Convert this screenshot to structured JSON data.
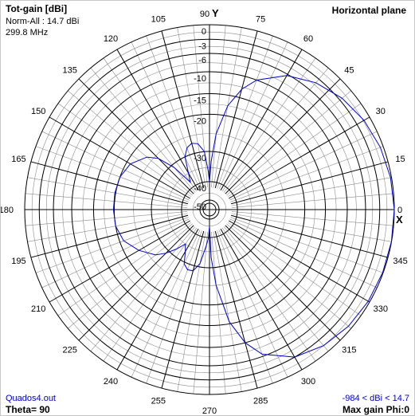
{
  "header": {
    "title": "Tot-gain [dBi]",
    "norm": "Norm-All : 14.7 dBi",
    "frequency": "299.8 MHz",
    "plane": "Horizontal plane"
  },
  "axis_marks": {
    "y_label": "Y",
    "x_label": "X"
  },
  "footer": {
    "file": "Quados4.out",
    "theta": "Theta= 90",
    "range": "-984 < dBi < 14.7",
    "max_gain": "Max gain Phi:0"
  },
  "colors": {
    "pattern": "#0000c8",
    "grid_major": "#000000",
    "grid_minor": "#8c8c8c"
  },
  "chart_data": {
    "type": "polar",
    "title": "Tot-gain [dBi]",
    "plane": "Horizontal plane",
    "angle_unit": "degrees",
    "angle_ticks": [
      0,
      15,
      30,
      45,
      60,
      75,
      90,
      105,
      120,
      135,
      150,
      165,
      180,
      195,
      210,
      225,
      240,
      255,
      270,
      285,
      300,
      315,
      330,
      345
    ],
    "radial_ticks": [
      0,
      -3,
      -6,
      -10,
      -15,
      -20,
      -30,
      -40,
      -50
    ],
    "radial_range_dB": [
      -50,
      0
    ],
    "series": [
      {
        "angles": [
          0,
          10,
          20,
          30,
          40,
          50,
          60,
          70,
          75,
          80,
          85,
          88,
          90,
          92,
          95,
          100,
          105,
          110,
          115,
          120,
          125,
          130,
          135,
          140,
          150,
          160,
          170,
          180,
          190,
          200,
          210,
          220,
          225,
          230,
          235,
          240,
          245,
          250,
          255,
          260,
          265,
          268,
          270,
          272,
          275,
          280,
          285,
          290,
          300,
          310,
          320,
          330,
          340,
          350
        ],
        "values_dB": [
          0,
          -0.2,
          -0.6,
          -1.3,
          -2.4,
          -4.0,
          -6.3,
          -10.0,
          -13.0,
          -17.5,
          -25.0,
          -33.0,
          -40.0,
          -36.0,
          -30.0,
          -27.5,
          -27.0,
          -27.8,
          -30.0,
          -35.0,
          -38.0,
          -31.0,
          -26.0,
          -23.5,
          -21.0,
          -20.0,
          -19.8,
          -19.8,
          -20.0,
          -21.0,
          -23.5,
          -26.5,
          -29.0,
          -32.0,
          -35.0,
          -33.0,
          -29.5,
          -28.3,
          -28.5,
          -31.0,
          -37.0,
          -40.0,
          -45.0,
          -33.0,
          -25.0,
          -15.5,
          -10.0,
          -6.5,
          -3.0,
          -1.5,
          -0.7,
          -0.3,
          -0.1,
          -0.02
        ]
      }
    ],
    "grid": true
  }
}
